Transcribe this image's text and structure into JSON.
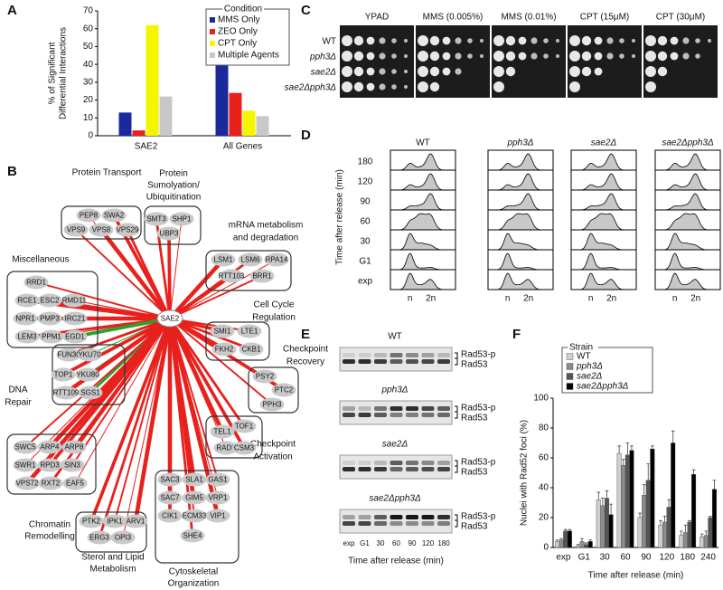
{
  "chart_data": [
    {
      "type": "bar",
      "label": "A",
      "y_label": [
        "% of Significant",
        "Differential Interactions"
      ],
      "categories": [
        "SAE2",
        "All Genes"
      ],
      "series": [
        {
          "name": "MMS Only",
          "color": "#1a2a9c",
          "values": [
            13,
            51
          ]
        },
        {
          "name": "ZEO Only",
          "color": "#e8211d",
          "values": [
            3,
            24
          ]
        },
        {
          "name": "CPT Only",
          "color": "#f5f500",
          "values": [
            62,
            14
          ]
        },
        {
          "name": "Multiple Agents",
          "color": "#c8c8c8",
          "values": [
            22,
            11
          ]
        }
      ],
      "ylim": [
        0,
        70
      ],
      "yticks": [
        0,
        10,
        20,
        30,
        40,
        50,
        60,
        70
      ],
      "legend_title": "Condition",
      "legend": "top-right"
    },
    {
      "type": "bar",
      "label": "F",
      "y_label": "Nuclei with Rad52 foci (%)",
      "x_label": "Time after release (min)",
      "categories": [
        "exp",
        "G1",
        "30",
        "60",
        "90",
        "120",
        "180",
        "240"
      ],
      "series": [
        {
          "name": "WT",
          "color": "#cfcfcf",
          "values": [
            4,
            1,
            32,
            63,
            20,
            15,
            8,
            7
          ],
          "errors": [
            1,
            1,
            5,
            5,
            3,
            3,
            3,
            2
          ]
        },
        {
          "name": "pph3Δ",
          "color": "#8c8c8c",
          "values": [
            5,
            4,
            28,
            55,
            35,
            17,
            10,
            8
          ],
          "errors": [
            1,
            2,
            5,
            4,
            7,
            4,
            5,
            3
          ]
        },
        {
          "name": "sae2Δ",
          "color": "#555555",
          "values": [
            11,
            2,
            33,
            62,
            45,
            27,
            17,
            20
          ],
          "errors": [
            1,
            1,
            5,
            8,
            11,
            5,
            1,
            1
          ]
        },
        {
          "name": "sae2Δpph3Δ",
          "color": "#000000",
          "values": [
            11,
            4,
            22,
            65,
            66,
            70,
            49,
            39
          ],
          "errors": [
            1,
            1,
            7,
            3,
            2,
            8,
            3,
            6
          ]
        }
      ],
      "ylim": [
        0,
        100
      ],
      "yticks": [
        0,
        20,
        40,
        60,
        80,
        100
      ],
      "legend_title": "Strain",
      "legend": "top-left"
    }
  ],
  "panel_b": {
    "label": "B",
    "center": "SAE2",
    "groups": [
      {
        "title": [
          "Protein Transport"
        ],
        "genes": [
          "PEP8",
          "SWA2",
          "VPS9",
          "VPS8",
          "VPS29"
        ]
      },
      {
        "title": [
          "Protein",
          "Sumolyation/",
          "Ubiquitination"
        ],
        "genes": [
          "SMT3",
          "SHP1",
          "UBP3"
        ]
      },
      {
        "title": [
          "mRNA metabolism",
          "and degradation"
        ],
        "genes": [
          "LSM1",
          "LSM6",
          "RPA14",
          "RTT103",
          "BRR1"
        ]
      },
      {
        "title": [
          "Miscellaneous"
        ],
        "genes": [
          "RRD1",
          "RCE1",
          "ESC2",
          "RMD11",
          "NPR1",
          "PMP3",
          "IRC21",
          "LEM3",
          "PPM1",
          "EGD1"
        ]
      },
      {
        "title": [
          "Cell Cycle",
          "Regulation"
        ],
        "genes": [
          "SMI1",
          "LTE1",
          "FKH2",
          "CKB1"
        ]
      },
      {
        "title": [
          "Checkpoint",
          "Recovery"
        ],
        "genes": [
          "PSY2",
          "PTC2",
          "PPH3"
        ]
      },
      {
        "title": [
          "DNA",
          "Repair"
        ],
        "genes": [
          "FUN30",
          "YKU70",
          "TOP1",
          "YKU80",
          "RTT109",
          "SGS1"
        ]
      },
      {
        "title": [
          "Checkpoint",
          "Activation"
        ],
        "genes": [
          "TEL1",
          "TOF1",
          "RAD9",
          "CSM3"
        ]
      },
      {
        "title": [
          "Chromatin",
          "Remodelling"
        ],
        "genes": [
          "SWC5",
          "ARP4",
          "ARP8",
          "SWR1",
          "RPD3",
          "SIN3",
          "VPS72",
          "RXT2",
          "EAF5"
        ]
      },
      {
        "title": [
          "Sterol and Lipid",
          "Metabolism"
        ],
        "genes": [
          "PTK2",
          "IPK1",
          "ARV1",
          "ERG3",
          "OPI3"
        ]
      },
      {
        "title": [
          "Cytoskeletal",
          "Organization"
        ],
        "genes": [
          "SAC3",
          "SLA1",
          "GAS1",
          "SAC7",
          "GIM5",
          "VRP1",
          "CIK1",
          "ECM33",
          "VIP1",
          "SHE4"
        ]
      }
    ]
  },
  "panel_c": {
    "label": "C",
    "columns": [
      "YPAD",
      "MMS (0.005%)",
      "MMS (0.01%)",
      "CPT (15μM)",
      "CPT (30μM)"
    ],
    "rows": [
      "WT",
      "pph3Δ",
      "sae2Δ",
      "sae2Δpph3Δ"
    ]
  },
  "panel_d": {
    "label": "D",
    "strains": [
      "WT",
      "pph3Δ",
      "sae2Δ",
      "sae2Δpph3Δ"
    ],
    "times": [
      "180",
      "120",
      "90",
      "60",
      "30",
      "G1",
      "exp"
    ],
    "y_label": "Time after release (min)",
    "x_labels": [
      "n",
      "2n"
    ]
  },
  "panel_e": {
    "label": "E",
    "blots": [
      "WT",
      "pph3Δ",
      "sae2Δ",
      "sae2Δpph3Δ"
    ],
    "bands": [
      "Rad53-p",
      "Rad53"
    ],
    "lanes": [
      "exp",
      "G1",
      "30",
      "60",
      "90",
      "120",
      "180"
    ],
    "x_label": "Time after release (min)"
  }
}
